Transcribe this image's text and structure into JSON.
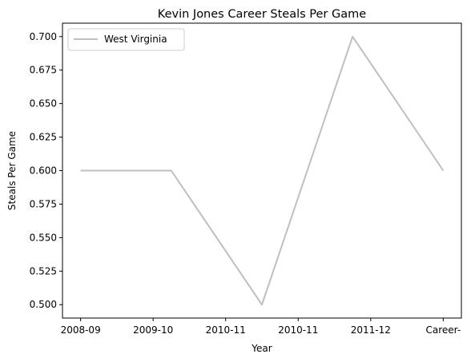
{
  "chart_data": {
    "type": "line",
    "title": "Kevin Jones  Career Steals Per Game",
    "xlabel": "Year",
    "ylabel": "Steals Per Game",
    "categories": [
      "2008-09",
      "2009-10",
      "2010-11",
      "2010-11",
      "2011-12",
      "Career-"
    ],
    "x_tick_labels": [
      "2008-09",
      "2009-10",
      "2010-11",
      "2010-11",
      "2011-12",
      "Career-"
    ],
    "series": [
      {
        "name": "West Virginia",
        "color": "#bfbfbf",
        "points": [
          {
            "x": 0,
            "y": 0.6
          },
          {
            "x": 1.25,
            "y": 0.6
          },
          {
            "x": 2.5,
            "y": 0.5
          },
          {
            "x": 3.75,
            "y": 0.7
          },
          {
            "x": 5,
            "y": 0.6
          }
        ]
      }
    ],
    "xlim": [
      -0.25,
      5.25
    ],
    "ylim": [
      0.49,
      0.71
    ],
    "y_ticks": [
      0.5,
      0.525,
      0.55,
      0.575,
      0.6,
      0.625,
      0.65,
      0.675,
      0.7
    ],
    "y_tick_labels": [
      "0.500",
      "0.525",
      "0.550",
      "0.575",
      "0.600",
      "0.625",
      "0.650",
      "0.675",
      "0.700"
    ],
    "grid": false,
    "legend_position": "upper-left"
  }
}
